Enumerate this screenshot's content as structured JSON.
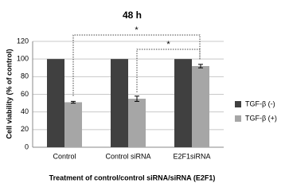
{
  "chart_data": {
    "type": "bar",
    "title": "48 h",
    "xlabel": "Treatment of control/control siRNA/siRNA (E2F1)",
    "ylabel": "Cell viability (% of control)",
    "categories": [
      "Control",
      "Control siRNA",
      "E2F1siRNA"
    ],
    "series": [
      {
        "name": "TGF-β (-)",
        "color": "#404040",
        "values": [
          100,
          100,
          100
        ]
      },
      {
        "name": "TGF-β (+)",
        "color": "#a6a6a6",
        "values": [
          51,
          55,
          92
        ],
        "errors": [
          1,
          3,
          2
        ]
      }
    ],
    "ylim": [
      0,
      120
    ],
    "yticks": [
      0,
      20,
      40,
      60,
      80,
      100,
      120
    ],
    "grid": true,
    "legend": "right",
    "annotations": [
      "*",
      "*"
    ]
  }
}
